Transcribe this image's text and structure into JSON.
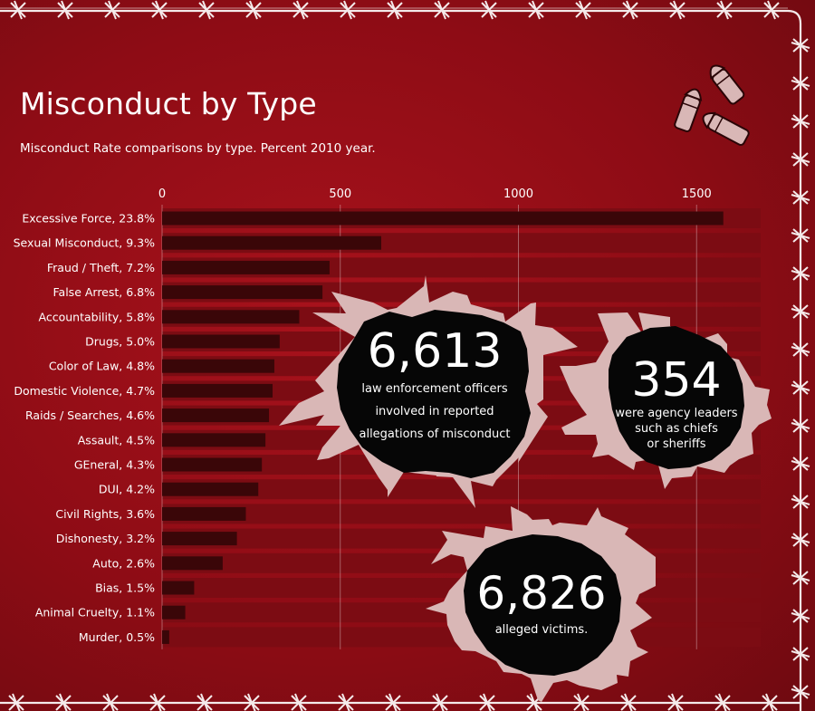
{
  "title": "Misconduct by Type",
  "subtitle": "Misconduct Rate comparisons by type. Percent 2010 year.",
  "colors": {
    "background": "#9b0f18",
    "track": "#7c0c13",
    "bar": "#3a0608",
    "text": "#ffffff",
    "hole": "#060606",
    "flap": "#d9b7b6"
  },
  "chart_data": {
    "type": "bar",
    "orientation": "horizontal",
    "title": "Misconduct by Type",
    "subtitle": "Misconduct Rate comparisons by type. Percent 2010 year.",
    "categories": [
      "Excessive Force, 23.8%",
      "Sexual Misconduct, 9.3%",
      "Fraud / Theft, 7.2%",
      "False Arrest, 6.8%",
      "Accountability, 5.8%",
      "Drugs, 5.0%",
      "Color of Law, 4.8%",
      "Domestic Violence, 4.7%",
      "Raids / Searches, 4.6%",
      "Assault, 4.5%",
      "GEneral, 4.3%",
      "DUI, 4.2%",
      "Civil Rights, 3.6%",
      "Dishonesty, 3.2%",
      "Auto, 2.6%",
      "Bias, 1.5%",
      "Animal Cruelty, 1.1%",
      "Murder, 0.5%"
    ],
    "values": [
      1575,
      615,
      470,
      450,
      385,
      330,
      315,
      310,
      300,
      290,
      280,
      270,
      235,
      210,
      170,
      90,
      65,
      20
    ],
    "xticks": [
      0,
      500,
      1000,
      1500
    ],
    "xlim": [
      0,
      1680
    ],
    "grid": true,
    "xlabel": "",
    "ylabel": ""
  },
  "callouts": [
    {
      "number": "6,613",
      "lines": [
        "law enforcement officers",
        "involved in reported",
        "allegations of misconduct"
      ]
    },
    {
      "number": "354",
      "lines": [
        "were agency leaders",
        "such as chiefs",
        "or sheriffs"
      ]
    },
    {
      "number": "6,826",
      "lines": [
        "alleged victims."
      ]
    }
  ],
  "icons": [
    "barbed-wire-border",
    "bullet-casings"
  ]
}
